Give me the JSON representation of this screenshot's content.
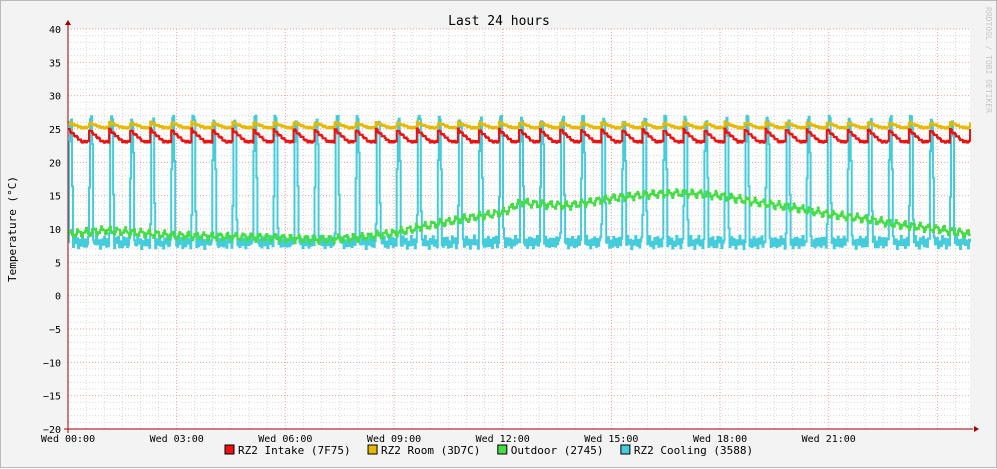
{
  "chart_data": {
    "type": "line",
    "title": "Last 24 hours",
    "ylabel": "Temperature (°C)",
    "xlabel": "",
    "watermark": "RRDTOOL / TOBI OETIKER",
    "ylim": [
      -20,
      40
    ],
    "ytick_step": 5,
    "ytick_labels": [
      "40",
      "35",
      "30",
      "25",
      "20",
      "15",
      "10",
      "5",
      "0",
      "−5",
      "−10",
      "−15",
      "−20"
    ],
    "xlim_hours": [
      0,
      24.9
    ],
    "xtick_labels": [
      "Wed 00:00",
      "Wed 03:00",
      "Wed 06:00",
      "Wed 09:00",
      "Wed 12:00",
      "Wed 15:00",
      "Wed 18:00",
      "Wed 21:00"
    ],
    "xtick_hours": [
      0,
      3,
      6,
      9,
      12,
      15,
      18,
      21
    ],
    "legend_position": "bottom",
    "colors": {
      "background": "#f3f3f3",
      "plot_background": "#ffffff",
      "major_grid": "#f0a0a0",
      "minor_grid": "#d8d8d8",
      "axis": "#a00000"
    },
    "series": [
      {
        "name": "RZ2 Intake (7F75)",
        "color": "#ee1111",
        "pattern": "sawtooth",
        "cycles": 44,
        "peak": 25.0,
        "trough": 23.1,
        "points": [
          [
            0,
            24.2
          ],
          [
            24.9,
            24.2
          ]
        ]
      },
      {
        "name": "RZ2 Room (3D7C)",
        "color": "#e6b800",
        "pattern": "sawtooth",
        "cycles": 44,
        "peak": 26.0,
        "trough": 25.2,
        "points": [
          [
            0,
            25.6
          ],
          [
            24.9,
            25.6
          ]
        ]
      },
      {
        "name": "Outdoor (2745)",
        "color": "#44dd44",
        "pattern": "trend",
        "points": [
          [
            0,
            9.2
          ],
          [
            1,
            9.8
          ],
          [
            2,
            9.4
          ],
          [
            3,
            9.0
          ],
          [
            4,
            8.9
          ],
          [
            5,
            8.8
          ],
          [
            6,
            8.6
          ],
          [
            7,
            8.4
          ],
          [
            8,
            8.7
          ],
          [
            9,
            9.4
          ],
          [
            10,
            10.6
          ],
          [
            11,
            11.6
          ],
          [
            12,
            12.5
          ],
          [
            12.5,
            14.0
          ],
          [
            13,
            13.7
          ],
          [
            13.8,
            13.5
          ],
          [
            15,
            14.6
          ],
          [
            16,
            15.2
          ],
          [
            17,
            15.4
          ],
          [
            18,
            15.0
          ],
          [
            19,
            14.0
          ],
          [
            20,
            13.2
          ],
          [
            21,
            12.2
          ],
          [
            22,
            11.5
          ],
          [
            23,
            10.6
          ],
          [
            24,
            10.0
          ],
          [
            24.9,
            9.2
          ]
        ]
      },
      {
        "name": "RZ2 Cooling (3588)",
        "color": "#44ccdd",
        "pattern": "spikes",
        "cycles": 44,
        "peak": 26.5,
        "base": 8.0,
        "points": [
          [
            0,
            8.0
          ],
          [
            24.9,
            8.0
          ]
        ]
      }
    ],
    "legend": [
      {
        "label": "RZ2 Intake (7F75)",
        "color": "#ee1111"
      },
      {
        "label": "RZ2 Room (3D7C)",
        "color": "#e6b800"
      },
      {
        "label": "Outdoor (2745)",
        "color": "#44dd44"
      },
      {
        "label": "RZ2 Cooling (3588)",
        "color": "#44ccdd"
      }
    ]
  }
}
